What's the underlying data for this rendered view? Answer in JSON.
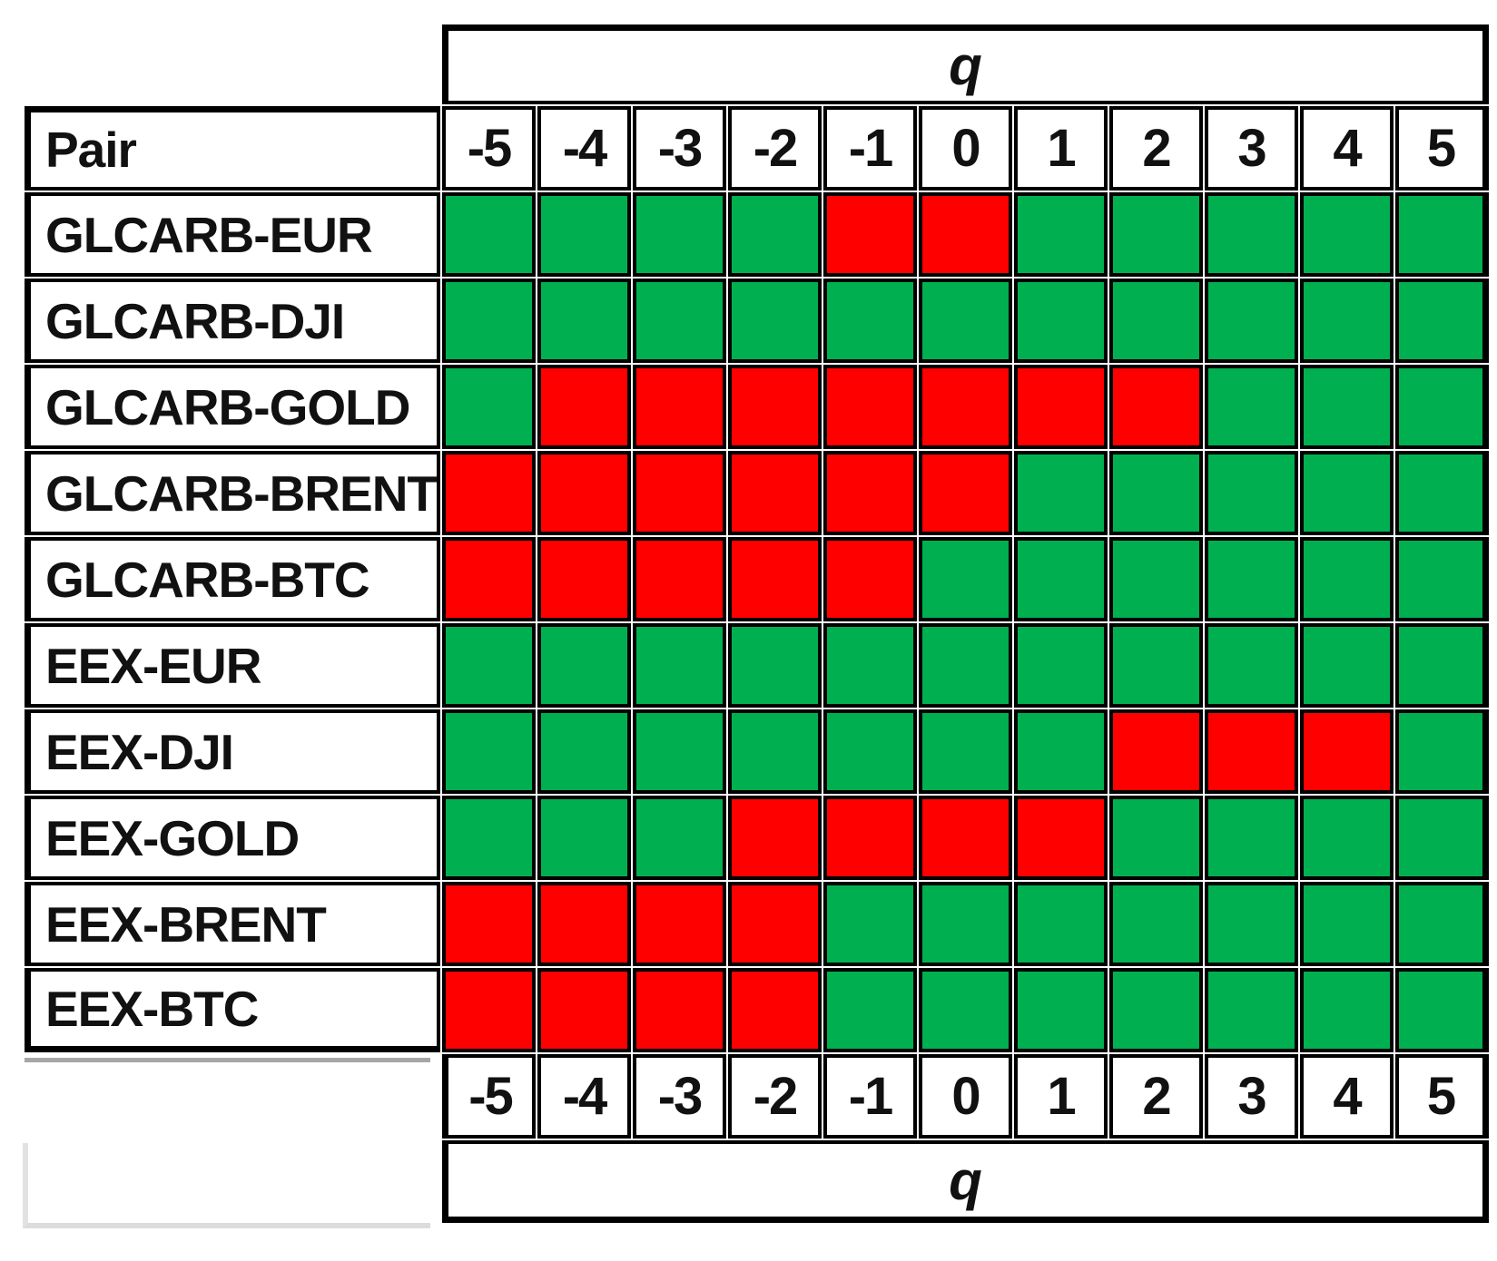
{
  "figure": {
    "top_axis_label": "q",
    "bottom_axis_label": "q",
    "pair_column_header": "Pair"
  },
  "colors": {
    "positive_green": "#00B050",
    "negative_red": "#FF0000",
    "grid_border": "#000000"
  },
  "chart_data": {
    "type": "heatmap",
    "title": "",
    "x_axis_label": "q",
    "x_categories": [
      "-5",
      "-4",
      "-3",
      "-2",
      "-1",
      "0",
      "1",
      "2",
      "3",
      "4",
      "5"
    ],
    "x_axis_shown_top_and_bottom": true,
    "row_header": "Pair",
    "cell_colors": {
      "G": "#00B050",
      "R": "#FF0000"
    },
    "legend": {
      "G": "green",
      "R": "red"
    },
    "rows": [
      {
        "pair": "GLCARB-EUR",
        "cells": [
          "G",
          "G",
          "G",
          "G",
          "R",
          "R",
          "G",
          "G",
          "G",
          "G",
          "G"
        ]
      },
      {
        "pair": "GLCARB-DJI",
        "cells": [
          "G",
          "G",
          "G",
          "G",
          "G",
          "G",
          "G",
          "G",
          "G",
          "G",
          "G"
        ]
      },
      {
        "pair": "GLCARB-GOLD",
        "cells": [
          "G",
          "R",
          "R",
          "R",
          "R",
          "R",
          "R",
          "R",
          "G",
          "G",
          "G"
        ]
      },
      {
        "pair": "GLCARB-BRENT",
        "cells": [
          "R",
          "R",
          "R",
          "R",
          "R",
          "R",
          "G",
          "G",
          "G",
          "G",
          "G"
        ]
      },
      {
        "pair": "GLCARB-BTC",
        "cells": [
          "R",
          "R",
          "R",
          "R",
          "R",
          "G",
          "G",
          "G",
          "G",
          "G",
          "G"
        ]
      },
      {
        "pair": "EEX-EUR",
        "cells": [
          "G",
          "G",
          "G",
          "G",
          "G",
          "G",
          "G",
          "G",
          "G",
          "G",
          "G"
        ]
      },
      {
        "pair": "EEX-DJI",
        "cells": [
          "G",
          "G",
          "G",
          "G",
          "G",
          "G",
          "G",
          "R",
          "R",
          "R",
          "G"
        ]
      },
      {
        "pair": "EEX-GOLD",
        "cells": [
          "G",
          "G",
          "G",
          "R",
          "R",
          "R",
          "R",
          "G",
          "G",
          "G",
          "G"
        ]
      },
      {
        "pair": "EEX-BRENT",
        "cells": [
          "R",
          "R",
          "R",
          "R",
          "G",
          "G",
          "G",
          "G",
          "G",
          "G",
          "G"
        ]
      },
      {
        "pair": "EEX-BTC",
        "cells": [
          "R",
          "R",
          "R",
          "R",
          "G",
          "G",
          "G",
          "G",
          "G",
          "G",
          "G"
        ]
      }
    ]
  }
}
